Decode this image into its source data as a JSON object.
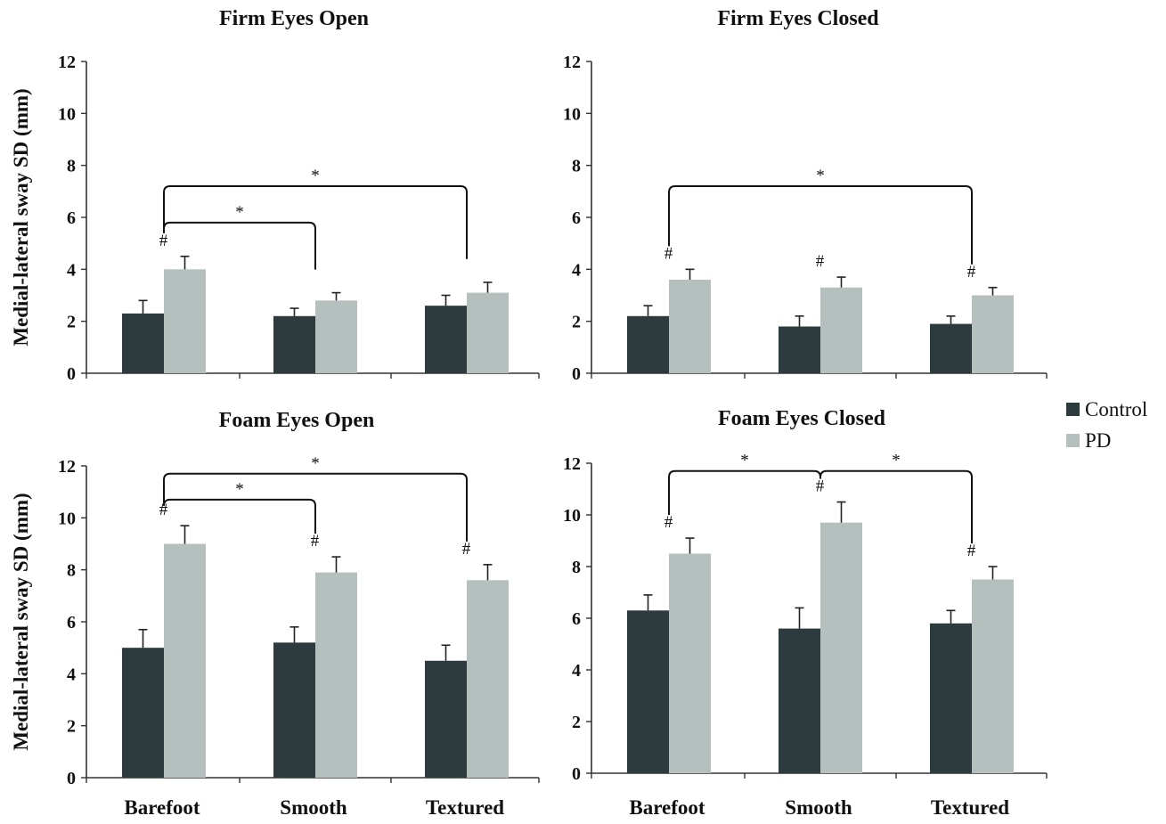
{
  "colors": {
    "Control": "#2d3b3f",
    "PD": "#b5bfbd"
  },
  "legend": [
    {
      "name": "Control",
      "color": "#2d3b3f"
    },
    {
      "name": "PD",
      "color": "#b5bfbd"
    }
  ],
  "y_axis_title": "Medial-lateral sway SD (mm)",
  "chart_data": [
    {
      "type": "bar",
      "title": "Firm Eyes Open",
      "categories": [
        "Barefoot",
        "Smooth",
        "Textured"
      ],
      "ylabel": "Medial-lateral sway SD (mm)",
      "ylim": [
        0,
        12
      ],
      "yticks": [
        0,
        2,
        4,
        6,
        8,
        10,
        12
      ],
      "series": [
        {
          "name": "Control",
          "values": [
            2.3,
            2.2,
            2.6
          ],
          "errors": [
            0.5,
            0.3,
            0.4
          ]
        },
        {
          "name": "PD",
          "values": [
            4.0,
            2.8,
            3.1
          ],
          "errors": [
            0.5,
            0.3,
            0.4
          ]
        }
      ],
      "hash_marks": [
        {
          "category": 0,
          "series": "PD",
          "label": "#"
        }
      ],
      "significance": [
        {
          "from": 0,
          "to": 1,
          "level": 5.8,
          "label": "*"
        },
        {
          "from": 0,
          "to": 2,
          "level": 7.2,
          "label": "*"
        }
      ]
    },
    {
      "type": "bar",
      "title": "Firm Eyes Closed",
      "categories": [
        "Barefoot",
        "Smooth",
        "Textured"
      ],
      "ylabel": "",
      "ylim": [
        0,
        12
      ],
      "yticks": [
        0,
        2,
        4,
        6,
        8,
        10,
        12
      ],
      "series": [
        {
          "name": "Control",
          "values": [
            2.2,
            1.8,
            1.9
          ],
          "errors": [
            0.4,
            0.4,
            0.3
          ]
        },
        {
          "name": "PD",
          "values": [
            3.6,
            3.3,
            3.0
          ],
          "errors": [
            0.4,
            0.4,
            0.3
          ]
        }
      ],
      "hash_marks": [
        {
          "category": 0,
          "series": "PD",
          "label": "#"
        },
        {
          "category": 1,
          "series": "PD",
          "label": "#"
        },
        {
          "category": 2,
          "series": "PD",
          "label": "#"
        }
      ],
      "significance": [
        {
          "from": 0,
          "to": 2,
          "level": 7.2,
          "label": "*"
        }
      ]
    },
    {
      "type": "bar",
      "title": "Foam Eyes Open",
      "categories": [
        "Barefoot",
        "Smooth",
        "Textured"
      ],
      "ylabel": "Medial-lateral sway SD (mm)",
      "ylim": [
        0,
        12
      ],
      "yticks": [
        0,
        2,
        4,
        6,
        8,
        10,
        12
      ],
      "series": [
        {
          "name": "Control",
          "values": [
            5.0,
            5.2,
            4.5
          ],
          "errors": [
            0.7,
            0.6,
            0.6
          ]
        },
        {
          "name": "PD",
          "values": [
            9.0,
            7.9,
            7.6
          ],
          "errors": [
            0.7,
            0.6,
            0.6
          ]
        }
      ],
      "hash_marks": [
        {
          "category": 0,
          "series": "PD",
          "label": "#"
        },
        {
          "category": 1,
          "series": "PD",
          "label": "#"
        },
        {
          "category": 2,
          "series": "PD",
          "label": "#"
        }
      ],
      "significance": [
        {
          "from": 0,
          "to": 1,
          "level": 10.7,
          "label": "*"
        },
        {
          "from": 0,
          "to": 2,
          "level": 11.7,
          "label": "*"
        }
      ]
    },
    {
      "type": "bar",
      "title": "Foam Eyes Closed",
      "categories": [
        "Barefoot",
        "Smooth",
        "Textured"
      ],
      "ylabel": "",
      "ylim": [
        0,
        12
      ],
      "yticks": [
        0,
        2,
        4,
        6,
        8,
        10,
        12
      ],
      "series": [
        {
          "name": "Control",
          "values": [
            6.3,
            5.6,
            5.8
          ],
          "errors": [
            0.6,
            0.8,
            0.5
          ]
        },
        {
          "name": "PD",
          "values": [
            8.5,
            9.7,
            7.5
          ],
          "errors": [
            0.6,
            0.8,
            0.5
          ]
        }
      ],
      "hash_marks": [
        {
          "category": 0,
          "series": "PD",
          "label": "#"
        },
        {
          "category": 1,
          "series": "PD",
          "label": "#"
        },
        {
          "category": 2,
          "series": "PD",
          "label": "#"
        }
      ],
      "significance": [
        {
          "from": 0,
          "to": 1,
          "level": 11.7,
          "label": "*"
        },
        {
          "from": 1,
          "to": 2,
          "level": 11.7,
          "label": "*"
        }
      ]
    }
  ]
}
